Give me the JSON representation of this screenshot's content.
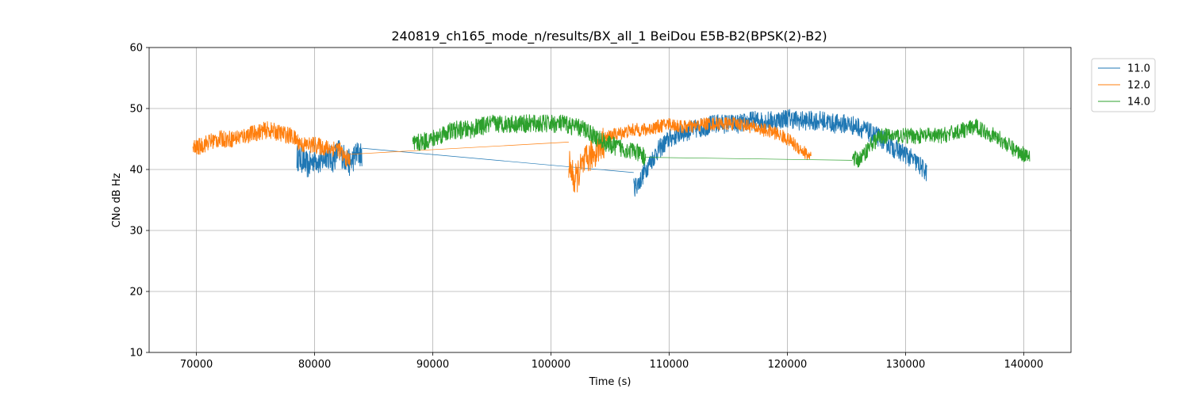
{
  "chart_data": {
    "type": "line",
    "title": "240819_ch165_mode_n/results/BX_all_1 BeiDou E5B-B2(BPSK(2)-B2)",
    "xlabel": "Time (s)",
    "ylabel": "CNo dB Hz",
    "xlim": [
      66000,
      144000
    ],
    "ylim": [
      10,
      60
    ],
    "xticks": [
      70000,
      80000,
      90000,
      100000,
      110000,
      120000,
      130000,
      140000
    ],
    "yticks": [
      10,
      20,
      30,
      40,
      50,
      60
    ],
    "grid": true,
    "legend_position": "top-right-outside",
    "series": [
      {
        "name": "11.0",
        "color": "#1f77b4",
        "segments": [
          {
            "x": [
              78500,
              79000,
              79500,
              80000,
              80500,
              81000,
              81500,
              82000,
              82500,
              83000,
              83500,
              84000
            ],
            "y": [
              42.0,
              41.5,
              40.5,
              42.0,
              41.0,
              42.5,
              41.5,
              43.0,
              42.0,
              41.0,
              42.5,
              42.5
            ],
            "noise": 2.2
          },
          {
            "x": [
              84000,
              107000
            ],
            "y": [
              43.5,
              39.5
            ],
            "noise": 0
          },
          {
            "x": [
              107000,
              107500,
              108000,
              108500,
              109000,
              109500,
              110000,
              111000,
              112000,
              113000,
              114000,
              115000,
              116000,
              117000,
              118000,
              119000,
              120000,
              121000,
              122000,
              123000,
              124000,
              125000,
              126000,
              127000,
              128000,
              129000,
              130000,
              131000,
              131800
            ],
            "y": [
              37.0,
              38.0,
              40.0,
              41.5,
              43.0,
              44.0,
              45.0,
              46.0,
              46.5,
              47.0,
              47.5,
              47.5,
              47.5,
              48.0,
              48.0,
              48.0,
              48.5,
              48.0,
              48.0,
              48.0,
              47.5,
              47.5,
              47.0,
              46.0,
              45.0,
              43.5,
              42.5,
              41.0,
              39.5
            ],
            "noise": 1.6
          }
        ]
      },
      {
        "name": "12.0",
        "color": "#ff7f0e",
        "segments": [
          {
            "x": [
              69700,
              70000,
              71000,
              72000,
              73000,
              74000,
              75000,
              76000,
              77000,
              78000,
              79000,
              80000,
              81000,
              82000,
              82500,
              83000
            ],
            "y": [
              43.5,
              43.5,
              44.5,
              45.0,
              45.0,
              45.5,
              46.0,
              46.5,
              46.0,
              45.5,
              44.0,
              44.0,
              43.5,
              43.5,
              42.0,
              41.5
            ],
            "noise": 1.4
          },
          {
            "x": [
              83000,
              101500
            ],
            "y": [
              42.5,
              44.5
            ],
            "noise": 0
          },
          {
            "x": [
              101500,
              102000,
              102500,
              103000,
              103500,
              104000,
              104500
            ],
            "y": [
              41.0,
              38.0,
              40.0,
              41.5,
              42.5,
              43.5,
              44.5
            ],
            "noise": 2.6
          },
          {
            "x": [
              104500,
              105000,
              106000,
              107000,
              108000,
              109000,
              110000,
              111000,
              112000,
              113000,
              114000,
              115000,
              116000,
              117000,
              118000,
              119000,
              120000,
              121000,
              122000
            ],
            "y": [
              45.0,
              45.5,
              46.0,
              46.5,
              46.5,
              47.0,
              47.5,
              47.0,
              47.0,
              47.5,
              47.5,
              47.5,
              47.5,
              47.0,
              46.5,
              46.0,
              45.0,
              43.5,
              42.0
            ],
            "noise": 1.1
          }
        ]
      },
      {
        "name": "14.0",
        "color": "#2ca02c",
        "segments": [
          {
            "x": [
              88300,
              89000,
              90000,
              91000,
              92000,
              93000,
              94000,
              95000,
              96000,
              97000,
              98000,
              99000,
              100000,
              101000,
              102000,
              103000,
              104000,
              105000,
              106000,
              107000,
              108000
            ],
            "y": [
              44.0,
              44.5,
              45.0,
              46.0,
              46.5,
              46.5,
              47.0,
              47.5,
              47.5,
              47.5,
              47.5,
              47.5,
              47.5,
              47.5,
              47.0,
              46.5,
              45.0,
              44.0,
              43.5,
              43.0,
              42.0
            ],
            "noise": 1.5
          },
          {
            "x": [
              108000,
              125500
            ],
            "y": [
              42.0,
              41.5
            ],
            "noise": 0
          },
          {
            "x": [
              125500,
              126000,
              126500,
              127000,
              128000,
              129000,
              130000,
              131000,
              132000,
              133000,
              134000,
              135000,
              136000,
              137000,
              138000,
              139000,
              140000,
              140500
            ],
            "y": [
              42.0,
              41.5,
              42.5,
              44.0,
              45.5,
              45.5,
              45.5,
              45.5,
              45.5,
              45.5,
              46.0,
              46.5,
              47.0,
              46.0,
              45.0,
              43.5,
              42.5,
              42.5
            ],
            "noise": 1.3
          }
        ]
      }
    ]
  }
}
